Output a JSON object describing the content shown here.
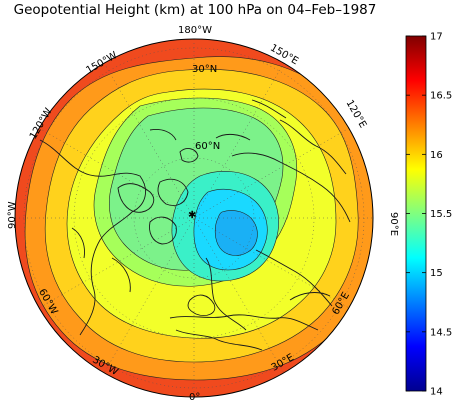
{
  "title": "Geopotential Height (km) at 100 hPa on 04–Feb–1987",
  "map": {
    "projection": "polar-stereographic",
    "lon_labels": [
      {
        "text": "180°W",
        "name": "lon-label-180w"
      },
      {
        "text": "150°E",
        "name": "lon-label-150e"
      },
      {
        "text": "120°E",
        "name": "lon-label-120e"
      },
      {
        "text": "90°E",
        "name": "lon-label-90e"
      },
      {
        "text": "60°E",
        "name": "lon-label-60e"
      },
      {
        "text": "30°E",
        "name": "lon-label-30e"
      },
      {
        "text": "0°",
        "name": "lon-label-0"
      },
      {
        "text": "30°W",
        "name": "lon-label-30w"
      },
      {
        "text": "60°W",
        "name": "lon-label-60w"
      },
      {
        "text": "90°W",
        "name": "lon-label-90w"
      },
      {
        "text": "120°W",
        "name": "lon-label-120w"
      },
      {
        "text": "150°W",
        "name": "lon-label-150w"
      }
    ],
    "lat_labels": [
      {
        "text": "30°N",
        "name": "lat-label-30n"
      },
      {
        "text": "60°N",
        "name": "lat-label-60n"
      }
    ],
    "colors": {
      "outer": "#f04a1e",
      "ring_orange": "#ff9a1a",
      "ring_yellow_orange": "#ffd21c",
      "ring_yellow": "#f2ff2a",
      "ring_light_green": "#a6ff5a",
      "ring_green": "#7cf28a",
      "ring_teal": "#3af0c8",
      "core_cyan": "#1ad9ff",
      "core_blue": "#1ab0f5"
    }
  },
  "colorbar": {
    "min": 14,
    "max": 17,
    "ticks": [
      {
        "value": "17",
        "name": "colorbar-tick-17"
      },
      {
        "value": "16.5",
        "name": "colorbar-tick-16-5"
      },
      {
        "value": "16",
        "name": "colorbar-tick-16"
      },
      {
        "value": "15.5",
        "name": "colorbar-tick-15-5"
      },
      {
        "value": "15",
        "name": "colorbar-tick-15"
      },
      {
        "value": "14.5",
        "name": "colorbar-tick-14-5"
      },
      {
        "value": "14",
        "name": "colorbar-tick-14"
      }
    ],
    "colormap": "jet"
  }
}
